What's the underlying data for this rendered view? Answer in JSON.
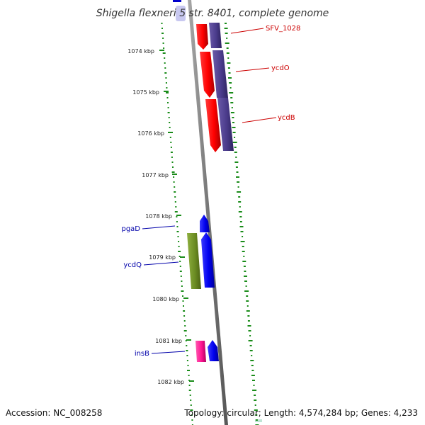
{
  "header": {
    "title": "Shigella flexneri 5 str. 8401, complete genome"
  },
  "footer": {
    "accession": "Accession: NC_008258",
    "topology": "Topology: circular; Length: 4,574,284 bp; Genes: 4,233"
  },
  "kbp_labels": [
    "1074 kbp",
    "1075 kbp",
    "1076 kbp",
    "1077 kbp",
    "1078 kbp",
    "1079 kbp",
    "1080 kbp",
    "1081 kbp",
    "1082 kbp"
  ],
  "gene_labels": [
    {
      "text": "SFV_1028",
      "color": "#cc0000"
    },
    {
      "text": "ycdO",
      "color": "#cc0000"
    },
    {
      "text": "ycdB",
      "color": "#cc0000"
    },
    {
      "text": "pgaD",
      "color": "#0000aa"
    },
    {
      "text": "ycdQ",
      "color": "#0000aa"
    },
    {
      "text": "insB",
      "color": "#0000aa"
    }
  ],
  "colors": {
    "red_gene": "#ff0000",
    "purple_gene": "#4b3c8c",
    "blue_gene": "#0000ee",
    "olive_gene": "#6b8c23",
    "pink_gene": "#ff1493",
    "gc_ticks": "#1a8c1a",
    "backbone": "#888888"
  }
}
